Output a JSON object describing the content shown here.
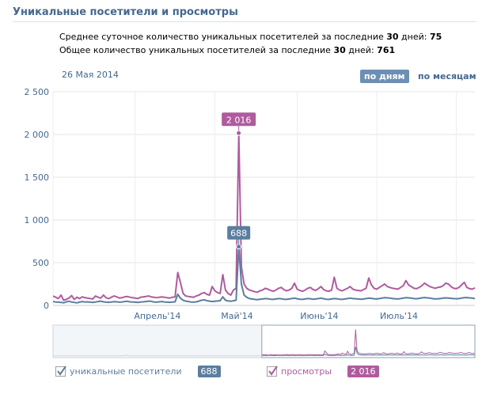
{
  "header": {
    "title": "Уникальные посетители и просмотры"
  },
  "stats": {
    "avg_prefix": "Среднее суточное количество уникальных посетителей за последние ",
    "avg_days": "30",
    "avg_mid": " дней: ",
    "avg_value": "75",
    "total_prefix": "Общее количество уникальных посетителей за последние ",
    "total_days": "30",
    "total_mid": " дней: ",
    "total_value": "761"
  },
  "date_label": "26 Мая 2014",
  "period_buttons": {
    "days": "по дням",
    "months": "по месяцам",
    "active": "days"
  },
  "legend": {
    "unique_label": "уникальные посетители",
    "unique_badge": "688",
    "views_label": "просмотры",
    "views_badge": "2 016"
  },
  "colors": {
    "unique": "#5b7e9e",
    "views": "#b05b9e",
    "grid": "#e6e6e6",
    "accent": "#45688e"
  },
  "chart_data": {
    "type": "line",
    "ylim": [
      0,
      2500
    ],
    "y_ticks": [
      "0",
      "500",
      "1 000",
      "1 500",
      "2 000",
      "2 500"
    ],
    "y_tick_values": [
      0,
      500,
      1000,
      1500,
      2000,
      2500
    ],
    "x_ticks": [
      "Апрель'14",
      "Май'14",
      "Июнь'14",
      "Июль'14"
    ],
    "x_tick_days": [
      31,
      61,
      92,
      122
    ],
    "peak": {
      "day": 70,
      "unique_label": "688",
      "views_label": "2 016",
      "unique": 688,
      "views": 2016
    },
    "series": [
      {
        "name": "уникальные посетители",
        "color": "#5b7e9e",
        "values": [
          45,
          40,
          38,
          35,
          30,
          42,
          48,
          40,
          35,
          30,
          38,
          45,
          40,
          42,
          38,
          35,
          40,
          45,
          50,
          42,
          38,
          36,
          40,
          44,
          42,
          38,
          40,
          45,
          48,
          42,
          40,
          38,
          35,
          40,
          42,
          45,
          50,
          48,
          40,
          38,
          42,
          45,
          40,
          38,
          36,
          40,
          42,
          130,
          85,
          60,
          50,
          45,
          40,
          38,
          42,
          50,
          60,
          65,
          55,
          50,
          45,
          48,
          52,
          55,
          100,
          60,
          52,
          48,
          55,
          60,
          688,
          250,
          120,
          95,
          80,
          75,
          70,
          68,
          72,
          75,
          80,
          78,
          72,
          70,
          75,
          80,
          78,
          72,
          70,
          75,
          80,
          85,
          78,
          72,
          70,
          75,
          80,
          78,
          72,
          75,
          80,
          85,
          78,
          72,
          70,
          75,
          80,
          78,
          72,
          70,
          75,
          80,
          85,
          80,
          78,
          75,
          72,
          75,
          80,
          85,
          82,
          78,
          75,
          80,
          85,
          90,
          88,
          85,
          80,
          78,
          75,
          80,
          85,
          90,
          88,
          85,
          80,
          78,
          82,
          88,
          92,
          88,
          85,
          80,
          75,
          78,
          80,
          85,
          88,
          85,
          82,
          80,
          78,
          80,
          85,
          90,
          92,
          88,
          85,
          80
        ]
      },
      {
        "name": "просмотры",
        "color": "#b05b9e",
        "values": [
          110,
          95,
          80,
          120,
          60,
          70,
          85,
          115,
          70,
          95,
          80,
          100,
          90,
          85,
          80,
          75,
          110,
          95,
          85,
          120,
          90,
          80,
          95,
          110,
          100,
          85,
          90,
          100,
          105,
          95,
          90,
          85,
          80,
          95,
          100,
          105,
          110,
          100,
          95,
          90,
          95,
          100,
          95,
          90,
          85,
          95,
          100,
          385,
          270,
          140,
          110,
          105,
          100,
          95,
          110,
          120,
          140,
          150,
          130,
          120,
          220,
          170,
          150,
          140,
          360,
          180,
          140,
          120,
          180,
          200,
          2016,
          450,
          250,
          200,
          180,
          170,
          160,
          155,
          170,
          180,
          200,
          190,
          175,
          165,
          180,
          200,
          210,
          185,
          170,
          180,
          200,
          260,
          190,
          175,
          165,
          180,
          200,
          210,
          185,
          175,
          195,
          220,
          185,
          170,
          165,
          180,
          330,
          200,
          180,
          170,
          185,
          200,
          220,
          190,
          180,
          175,
          170,
          185,
          200,
          320,
          240,
          200,
          190,
          210,
          230,
          250,
          220,
          210,
          200,
          195,
          190,
          210,
          230,
          290,
          240,
          220,
          200,
          195,
          210,
          230,
          260,
          240,
          220,
          210,
          200,
          210,
          215,
          230,
          260,
          250,
          220,
          200,
          195,
          210,
          240,
          270,
          210,
          195,
          190,
          205
        ]
      }
    ]
  }
}
